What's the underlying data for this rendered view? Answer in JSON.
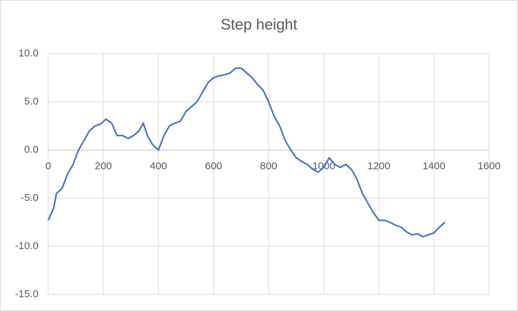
{
  "chart_data": {
    "type": "line",
    "title": "Step height",
    "x": [
      0,
      20,
      30,
      50,
      70,
      90,
      110,
      130,
      150,
      170,
      190,
      210,
      230,
      250,
      270,
      290,
      310,
      330,
      345,
      360,
      380,
      400,
      420,
      440,
      460,
      480,
      500,
      520,
      540,
      560,
      580,
      600,
      620,
      640,
      660,
      680,
      700,
      720,
      740,
      760,
      780,
      800,
      820,
      840,
      860,
      880,
      900,
      920,
      940,
      960,
      980,
      1000,
      1020,
      1040,
      1060,
      1080,
      1100,
      1120,
      1140,
      1160,
      1180,
      1200,
      1220,
      1240,
      1260,
      1280,
      1300,
      1320,
      1340,
      1360,
      1380,
      1400,
      1420,
      1440
    ],
    "series": [
      {
        "name": "Step height",
        "color": "#4472c4",
        "values": [
          -7.3,
          -6.0,
          -4.5,
          -4.0,
          -2.5,
          -1.5,
          0.0,
          1.0,
          2.0,
          2.5,
          2.7,
          3.2,
          2.8,
          1.5,
          1.5,
          1.2,
          1.5,
          2.0,
          2.8,
          1.5,
          0.5,
          0.0,
          1.5,
          2.5,
          2.8,
          3.0,
          4.0,
          4.5,
          5.0,
          6.0,
          7.0,
          7.5,
          7.7,
          7.8,
          8.0,
          8.5,
          8.5,
          8.0,
          7.5,
          6.8,
          6.2,
          5.0,
          3.5,
          2.5,
          1.0,
          0.0,
          -0.8,
          -1.2,
          -1.5,
          -2.0,
          -2.3,
          -1.8,
          -0.8,
          -1.5,
          -1.8,
          -1.5,
          -2.0,
          -3.0,
          -4.5,
          -5.5,
          -6.5,
          -7.3,
          -7.3,
          -7.5,
          -7.8,
          -8.0,
          -8.5,
          -8.8,
          -8.7,
          -9.0,
          -8.8,
          -8.6,
          -8.0,
          -7.5
        ]
      }
    ],
    "xlim": [
      0,
      1600
    ],
    "xticks": [
      0,
      200,
      400,
      600,
      800,
      1000,
      1200,
      1400,
      1600
    ],
    "ylim": [
      -15,
      10
    ],
    "yticks": [
      {
        "value": -15,
        "label": "-15.0"
      },
      {
        "value": -10,
        "label": "-10.0"
      },
      {
        "value": -5,
        "label": "-5.0"
      },
      {
        "value": 0,
        "label": "0.0"
      },
      {
        "value": 5,
        "label": "5.0"
      },
      {
        "value": 10,
        "label": "10.0"
      }
    ],
    "grid": true
  }
}
